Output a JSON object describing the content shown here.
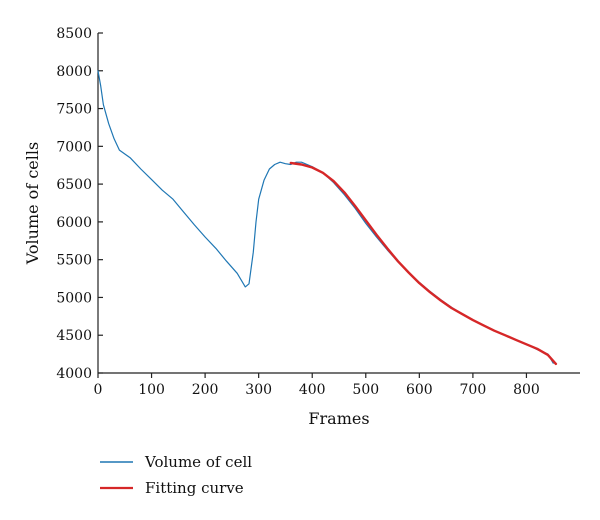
{
  "chart_data": {
    "type": "line",
    "title": "",
    "xlabel": "Frames",
    "ylabel": "Volume of cells",
    "xlim": [
      0,
      900
    ],
    "ylim": [
      4000,
      8500
    ],
    "x_ticks": [
      0,
      100,
      200,
      300,
      400,
      500,
      600,
      700,
      800
    ],
    "y_ticks": [
      4000,
      4500,
      5000,
      5500,
      6000,
      6500,
      7000,
      7500,
      8000,
      8500
    ],
    "grid": false,
    "legend_position": "bottom-left",
    "series": [
      {
        "name": "Volume of cell",
        "color": "#1f77b4",
        "x": [
          0,
          5,
          10,
          20,
          30,
          40,
          60,
          80,
          100,
          120,
          140,
          160,
          180,
          200,
          220,
          240,
          260,
          275,
          282,
          290,
          295,
          300,
          310,
          320,
          330,
          340,
          350,
          360,
          370,
          380,
          400,
          420,
          440,
          460,
          480,
          500,
          520,
          540,
          560,
          580,
          600,
          620,
          640,
          660,
          680,
          700,
          720,
          740,
          760,
          780,
          800,
          820,
          840,
          850
        ],
        "y": [
          8000,
          7800,
          7550,
          7300,
          7100,
          6950,
          6850,
          6700,
          6560,
          6420,
          6300,
          6130,
          5960,
          5800,
          5650,
          5480,
          5320,
          5140,
          5180,
          5600,
          6000,
          6300,
          6550,
          6700,
          6760,
          6790,
          6770,
          6760,
          6790,
          6790,
          6730,
          6650,
          6520,
          6360,
          6180,
          5980,
          5800,
          5630,
          5470,
          5330,
          5200,
          5080,
          4970,
          4870,
          4780,
          4700,
          4630,
          4560,
          4500,
          4440,
          4380,
          4310,
          4250,
          4130
        ]
      },
      {
        "name": "Fitting curve",
        "color": "#d62728",
        "x": [
          360,
          380,
          400,
          420,
          440,
          460,
          480,
          500,
          520,
          540,
          560,
          580,
          600,
          620,
          640,
          660,
          680,
          700,
          720,
          740,
          760,
          780,
          800,
          820,
          840,
          855
        ],
        "y": [
          6780,
          6760,
          6720,
          6650,
          6540,
          6390,
          6210,
          6020,
          5830,
          5650,
          5480,
          5330,
          5190,
          5070,
          4960,
          4860,
          4780,
          4700,
          4630,
          4560,
          4500,
          4440,
          4380,
          4320,
          4240,
          4120
        ]
      }
    ]
  }
}
